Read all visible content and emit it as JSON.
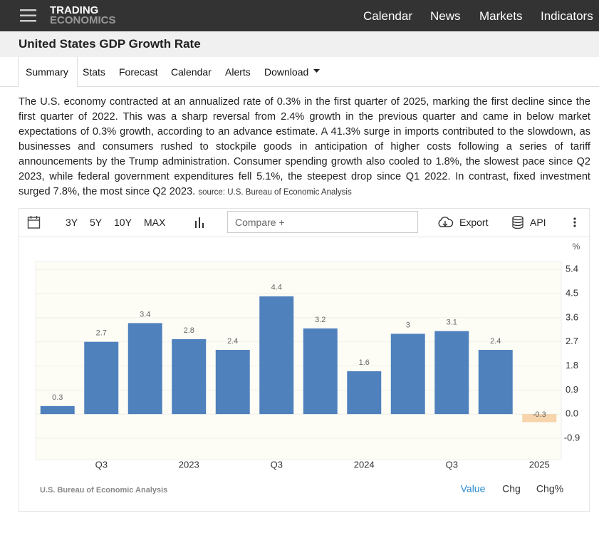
{
  "header": {
    "logo_top": "TRADING",
    "logo_bottom": "ECONOMICS",
    "nav": [
      "Calendar",
      "News",
      "Markets",
      "Indicators"
    ]
  },
  "page_title": "United States GDP Growth Rate",
  "tabs": [
    "Summary",
    "Stats",
    "Forecast",
    "Calendar",
    "Alerts",
    "Download"
  ],
  "summary": {
    "text": "The U.S. economy contracted at an annualized rate of 0.3% in the first quarter of 2025, marking the first decline since the first quarter of 2022. This was a sharp reversal from 2.4% growth in the previous quarter and came in below market expectations of 0.3% growth, according to an advance estimate. A 41.3% surge in imports contributed to the slowdown, as businesses and consumers rushed to stockpile goods in anticipation of higher costs following a series of tariff announcements by the Trump administration. Consumer spending growth also cooled to 1.8%, the slowest pace since Q2 2023, while federal government expenditures fell 5.1%, the steepest drop since Q1 2022. In contrast, fixed investment surged 7.8%, the most since Q2 2023.",
    "source": "source: U.S. Bureau of Economic Analysis"
  },
  "toolbar": {
    "ranges": [
      "3Y",
      "5Y",
      "10Y",
      "MAX"
    ],
    "compare": "Compare +",
    "export": "Export",
    "api": "API"
  },
  "chart_data": {
    "type": "bar",
    "categories": [
      null,
      "Q3",
      null,
      "2023",
      null,
      "Q3",
      null,
      "2024",
      null,
      "Q3",
      null,
      "2025"
    ],
    "values": [
      0.3,
      2.7,
      3.4,
      2.8,
      2.4,
      4.4,
      3.2,
      1.6,
      3,
      3.1,
      2.4,
      -0.3
    ],
    "color": "#4f81bd",
    "negative_color": "#f7d4ab",
    "ylim": [
      -1.7,
      5.7
    ],
    "yticks": [
      -0.9,
      {
        "value": 0,
        "label": "0.0"
      },
      0.9,
      1.8,
      2.7,
      3.6,
      4.5,
      5.4
    ],
    "y_unit": "%",
    "grid": true,
    "source": "U.S. Bureau of Economic Analysis"
  },
  "view_modes": [
    "Value",
    "Chg",
    "Chg%"
  ]
}
